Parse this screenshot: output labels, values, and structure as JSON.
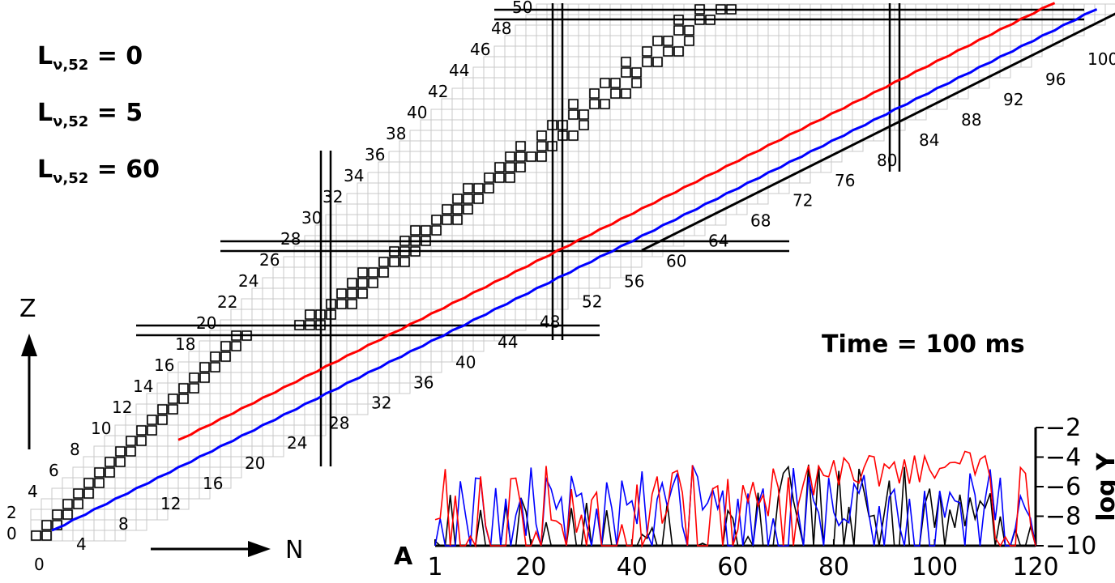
{
  "chart_data": [
    {
      "type": "nuclide-chart",
      "description_axes": {
        "x_label": "N",
        "y_label": "Z"
      },
      "n_tick_labels": [
        "0",
        "4",
        "8",
        "12",
        "16",
        "20",
        "24",
        "28",
        "32",
        "36",
        "40",
        "44",
        "48",
        "52",
        "56",
        "60",
        "64",
        "68",
        "72",
        "76",
        "80",
        "84",
        "88",
        "92",
        "96",
        "100"
      ],
      "z_tick_labels": [
        "0",
        "2",
        "4",
        "6",
        "8",
        "10",
        "12",
        "14",
        "16",
        "18",
        "20",
        "22",
        "24",
        "26",
        "28",
        "30",
        "32",
        "34",
        "36",
        "38",
        "40",
        "42",
        "44",
        "46",
        "48",
        "50"
      ],
      "magic_n": [
        28,
        50,
        82
      ],
      "magic_z": [
        20,
        28,
        50
      ],
      "stable_isotopes_drawn": true,
      "paths": [
        {
          "name": "L_nu52 = 0",
          "color": "#000000"
        },
        {
          "name": "L_nu52 = 5",
          "color": "#0000ff"
        },
        {
          "name": "L_nu52 = 60",
          "color": "#ff0000"
        }
      ],
      "annotation": "Time = 100 ms"
    },
    {
      "type": "line",
      "xlabel": "A",
      "ylabel": "log Y",
      "xlim": [
        1,
        120
      ],
      "ylim": [
        -10,
        -2
      ],
      "x_ticks": [
        "1",
        "20",
        "40",
        "60",
        "80",
        "100",
        "120"
      ],
      "y_ticks": [
        "-2",
        "-4",
        "-6",
        "-8",
        "-10"
      ],
      "series": [
        {
          "name": "L_nu52 = 0",
          "color": "#000000"
        },
        {
          "name": "L_nu52 = 5",
          "color": "#0000ff"
        },
        {
          "name": "L_nu52 = 60",
          "color": "#ff0000"
        }
      ]
    }
  ],
  "legend": [
    {
      "label_main": "L",
      "label_sub": "ν,52",
      "label_value": " = 0",
      "color": "#000000"
    },
    {
      "label_main": "L",
      "label_sub": "ν,52",
      "label_value": " = 5",
      "color": "#0000ff"
    },
    {
      "label_main": "L",
      "label_sub": "ν,52",
      "label_value": " = 60",
      "color": "#ff0000"
    }
  ],
  "time_label": "Time = 100 ms",
  "axis_letters": {
    "z": "Z",
    "n": "N",
    "a": "A",
    "logy": "log Y"
  }
}
